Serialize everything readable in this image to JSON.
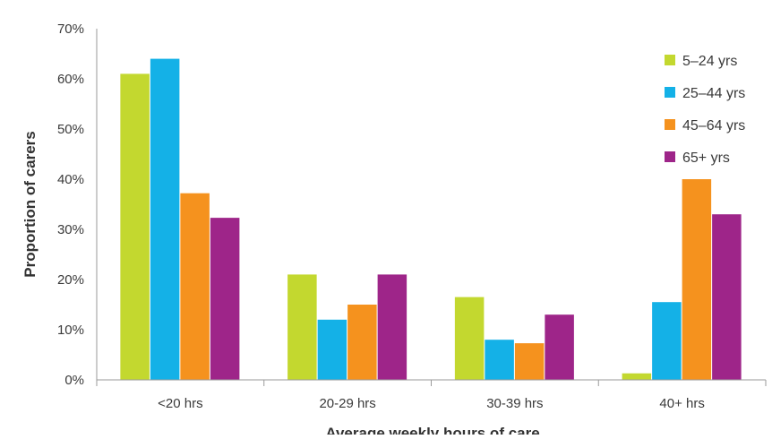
{
  "chart_data": {
    "type": "bar",
    "xlabel": "Average weekly hours of care",
    "ylabel": "Proportion of carers",
    "categories": [
      "<20 hrs",
      "20-29 hrs",
      "30-39 hrs",
      "40+ hrs"
    ],
    "ylim": [
      0,
      70
    ],
    "yticks": [
      0,
      10,
      20,
      30,
      40,
      50,
      60,
      70
    ],
    "ytick_labels": [
      "0%",
      "10%",
      "20%",
      "30%",
      "40%",
      "50%",
      "60%",
      "70%"
    ],
    "grid": false,
    "legend_position": "top-right",
    "series": [
      {
        "name": "5–24 yrs",
        "color": "#c3d82f",
        "values": [
          61,
          21,
          16.5,
          1.3
        ]
      },
      {
        "name": "25–44 yrs",
        "color": "#14b1e7",
        "values": [
          64,
          12,
          8,
          15.5
        ]
      },
      {
        "name": "45–64 yrs",
        "color": "#f5921e",
        "values": [
          37.2,
          15,
          7.3,
          40
        ]
      },
      {
        "name": "65+ yrs",
        "color": "#9e2589",
        "values": [
          32.3,
          21,
          13,
          33
        ]
      }
    ]
  }
}
